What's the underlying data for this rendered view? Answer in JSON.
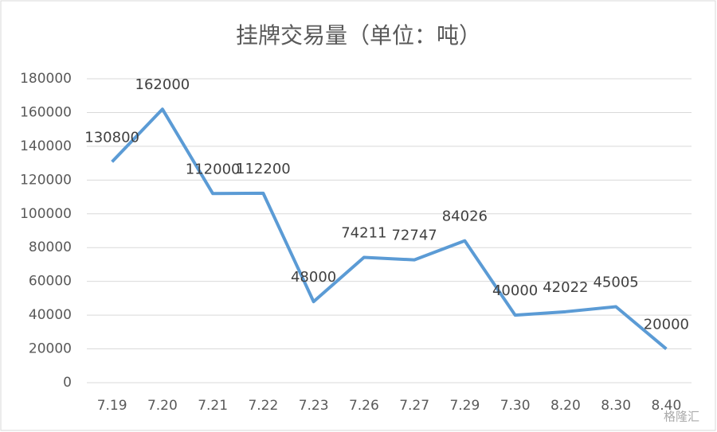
{
  "chart_data": {
    "type": "line",
    "title": "挂牌交易量（单位：吨）",
    "categories": [
      "7.19",
      "7.20",
      "7.21",
      "7.22",
      "7.23",
      "7.26",
      "7.27",
      "7.29",
      "7.30",
      "8.20",
      "8.30",
      "8.40"
    ],
    "series": [
      {
        "name": "挂牌交易量",
        "color": "#5b9bd5",
        "values": [
          130800,
          162000,
          112000,
          112200,
          48000,
          74211,
          72747,
          84026,
          40000,
          42022,
          45005,
          20000
        ]
      }
    ],
    "ylim": [
      0,
      180000
    ],
    "yticks": [
      0,
      20000,
      40000,
      60000,
      80000,
      100000,
      120000,
      140000,
      160000,
      180000
    ],
    "grid": true,
    "watermark": "格隆汇"
  }
}
